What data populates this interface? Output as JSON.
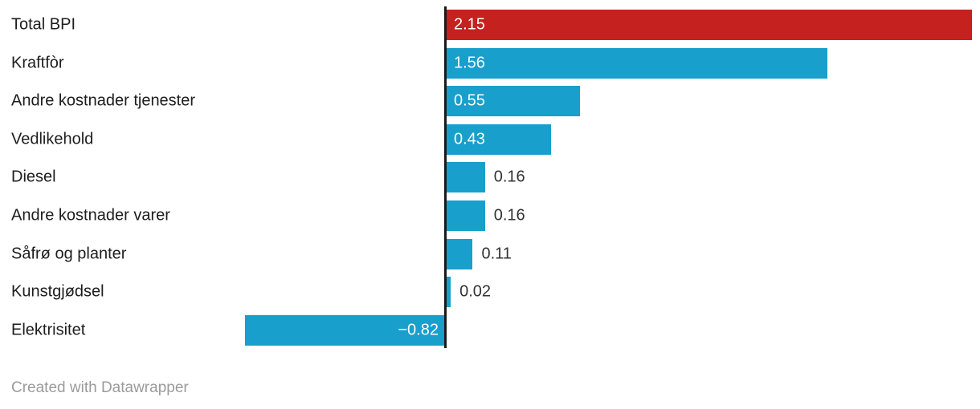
{
  "chart_data": {
    "type": "bar",
    "orientation": "horizontal",
    "title": "",
    "xlabel": "",
    "ylabel": "",
    "xlim": [
      -0.82,
      2.18
    ],
    "grid": false,
    "legend": "none",
    "zero_baseline": true,
    "categories": [
      "Total BPI",
      "Kraftfòr",
      "Andre kostnader tjenester",
      "Vedlikehold",
      "Diesel",
      "Andre kostnader varer",
      "Såfrø og planter",
      "Kunstgjødsel",
      "Elektrisitet"
    ],
    "values": [
      2.15,
      1.56,
      0.55,
      0.43,
      0.16,
      0.16,
      0.11,
      0.02,
      -0.82
    ],
    "rows": [
      {
        "label": "Total BPI",
        "value": 2.15,
        "value_label": "2.15",
        "color": "#c4211f",
        "value_label_position": "inside-left"
      },
      {
        "label": "Kraftfòr",
        "value": 1.56,
        "value_label": "1.56",
        "color": "#189fcb",
        "value_label_position": "inside-left"
      },
      {
        "label": "Andre kostnader tjenester",
        "value": 0.55,
        "value_label": "0.55",
        "color": "#189fcb",
        "value_label_position": "inside-left"
      },
      {
        "label": "Vedlikehold",
        "value": 0.43,
        "value_label": "0.43",
        "color": "#189fcb",
        "value_label_position": "inside-left"
      },
      {
        "label": "Diesel",
        "value": 0.16,
        "value_label": "0.16",
        "color": "#189fcb",
        "value_label_position": "outside-right"
      },
      {
        "label": "Andre kostnader varer",
        "value": 0.16,
        "value_label": "0.16",
        "color": "#189fcb",
        "value_label_position": "outside-right"
      },
      {
        "label": "Såfrø og planter",
        "value": 0.11,
        "value_label": "0.11",
        "color": "#189fcb",
        "value_label_position": "outside-right"
      },
      {
        "label": "Kunstgjødsel",
        "value": 0.02,
        "value_label": "0.02",
        "color": "#189fcb",
        "value_label_position": "outside-right"
      },
      {
        "label": "Elektrisitet",
        "value": -0.82,
        "value_label": "−0.82",
        "color": "#189fcb",
        "value_label_position": "inside-right"
      }
    ]
  },
  "colors": {
    "highlight_bar": "#c4211f",
    "default_bar": "#189fcb",
    "axis_line": "#1a1a1a",
    "category_label": "#1d1d1d",
    "value_inside": "#ffffff",
    "value_outside": "#333333",
    "credit_text": "#9b9b9b",
    "background": "#ffffff"
  },
  "footer": {
    "credit": "Created with Datawrapper"
  }
}
